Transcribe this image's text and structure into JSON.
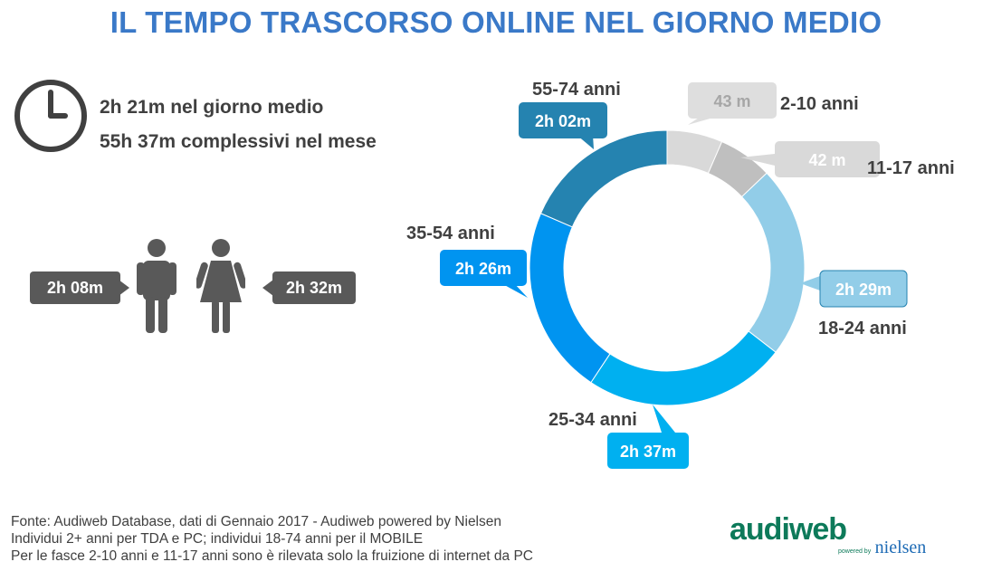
{
  "title": "IL TEMPO TRASCORSO ONLINE NEL GIORNO MEDIO",
  "summary": {
    "line1": "2h 21m nel giorno medio",
    "line2": "55h 37m complessivi nel mese"
  },
  "gender": {
    "male_time": "2h 08m",
    "female_time": "2h 32m"
  },
  "chart_data": {
    "type": "pie",
    "style": "donut",
    "categories": [
      "2-10 anni",
      "11-17 anni",
      "18-24 anni",
      "25-34 anni",
      "35-54 anni",
      "55-74 anni"
    ],
    "labels": [
      "43 m",
      "42 m",
      "2h 29m",
      "2h 37m",
      "2h 26m",
      "2h 02m"
    ],
    "values": [
      43,
      42,
      149,
      157,
      146,
      122
    ],
    "colors": [
      "#d9d9d9",
      "#bfbfbf",
      "#92cde8",
      "#00b0f0",
      "#0094f0",
      "#2583b0"
    ]
  },
  "footer": {
    "line1": "Fonte: Audiweb Database, dati di Gennaio 2017 - Audiweb powered by Nielsen",
    "line2": "Individui 2+ anni per TDA e PC; individui 18-74 anni per il MOBILE",
    "line3": "Per le fasce 2-10 anni e 11-17 anni sono è rilevata solo la fruizione di internet da PC"
  },
  "logo": {
    "brand": "audiweb",
    "powered": "powered by",
    "partner": "nielsen"
  }
}
